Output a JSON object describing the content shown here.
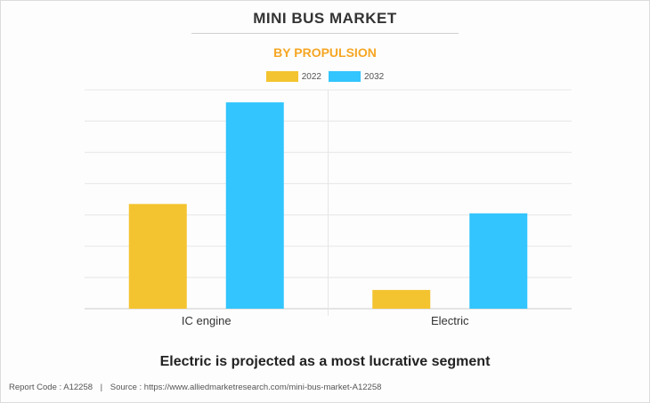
{
  "title": "MINI BUS MARKET",
  "subtitle": "BY PROPULSION",
  "headline": "Electric is projected as a most lucrative segment",
  "footer": {
    "report_code": "Report Code : A12258",
    "separator": "|",
    "source": "Source : https://www.alliedmarketresearch.com/mini-bus-market-A12258"
  },
  "colors": {
    "series_2022": "#f4c430",
    "series_2032": "#33c5fd",
    "subtitle": "#f5a623"
  },
  "chart_data": {
    "type": "bar",
    "categories": [
      "IC engine",
      "Electric"
    ],
    "series": [
      {
        "name": "2022",
        "values": [
          3.35,
          0.6
        ]
      },
      {
        "name": "2032",
        "values": [
          6.6,
          3.05
        ]
      }
    ],
    "ylim": [
      0,
      7
    ],
    "grid": true,
    "legend_position": "top-center",
    "xlabel": "",
    "ylabel": ""
  }
}
